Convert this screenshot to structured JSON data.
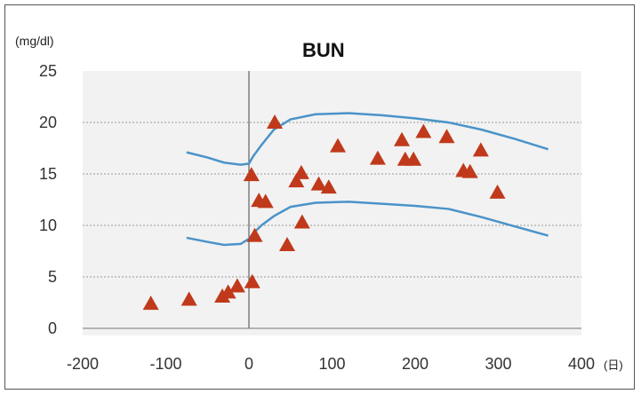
{
  "chart_data": {
    "type": "scatter",
    "title": "BUN",
    "ylabel": "(mg/dl)",
    "xlabel": "(日)",
    "xlim": [
      -200,
      400
    ],
    "ylim": [
      0,
      25
    ],
    "x_ticks": [
      -200,
      -100,
      0,
      100,
      200,
      300,
      400
    ],
    "y_ticks": [
      0,
      5,
      10,
      15,
      20,
      25
    ],
    "grid": "horizontal dotted",
    "colors": {
      "points": "#c0391b",
      "bands": "#4a93c9",
      "plot_bg": "#f2f2f2"
    },
    "points": [
      {
        "x": -118,
        "y": 2.4
      },
      {
        "x": -72,
        "y": 2.8
      },
      {
        "x": -32,
        "y": 3.1
      },
      {
        "x": -25,
        "y": 3.5
      },
      {
        "x": -14,
        "y": 4.1
      },
      {
        "x": 4,
        "y": 4.5
      },
      {
        "x": 7,
        "y": 9.0
      },
      {
        "x": 3,
        "y": 14.9
      },
      {
        "x": 12,
        "y": 12.4
      },
      {
        "x": 20,
        "y": 12.3
      },
      {
        "x": 31,
        "y": 20.0
      },
      {
        "x": 46,
        "y": 8.1
      },
      {
        "x": 57,
        "y": 14.3
      },
      {
        "x": 63,
        "y": 15.1
      },
      {
        "x": 64,
        "y": 10.3
      },
      {
        "x": 84,
        "y": 14.0
      },
      {
        "x": 96,
        "y": 13.7
      },
      {
        "x": 107,
        "y": 17.7
      },
      {
        "x": 155,
        "y": 16.5
      },
      {
        "x": 184,
        "y": 18.3
      },
      {
        "x": 188,
        "y": 16.4
      },
      {
        "x": 198,
        "y": 16.4
      },
      {
        "x": 210,
        "y": 19.1
      },
      {
        "x": 238,
        "y": 18.6
      },
      {
        "x": 258,
        "y": 15.3
      },
      {
        "x": 266,
        "y": 15.2
      },
      {
        "x": 279,
        "y": 17.3
      },
      {
        "x": 299,
        "y": 13.2
      }
    ],
    "upper_band": [
      {
        "x": -75,
        "y": 17.1
      },
      {
        "x": -50,
        "y": 16.6
      },
      {
        "x": -30,
        "y": 16.1
      },
      {
        "x": -10,
        "y": 15.9
      },
      {
        "x": 0,
        "y": 16.0
      },
      {
        "x": 5,
        "y": 16.7
      },
      {
        "x": 15,
        "y": 17.8
      },
      {
        "x": 30,
        "y": 19.3
      },
      {
        "x": 50,
        "y": 20.3
      },
      {
        "x": 80,
        "y": 20.8
      },
      {
        "x": 120,
        "y": 20.9
      },
      {
        "x": 160,
        "y": 20.7
      },
      {
        "x": 200,
        "y": 20.4
      },
      {
        "x": 240,
        "y": 20.0
      },
      {
        "x": 280,
        "y": 19.3
      },
      {
        "x": 320,
        "y": 18.4
      },
      {
        "x": 360,
        "y": 17.4
      }
    ],
    "lower_band": [
      {
        "x": -75,
        "y": 8.8
      },
      {
        "x": -50,
        "y": 8.4
      },
      {
        "x": -30,
        "y": 8.1
      },
      {
        "x": -10,
        "y": 8.2
      },
      {
        "x": 0,
        "y": 8.7
      },
      {
        "x": 5,
        "y": 9.2
      },
      {
        "x": 15,
        "y": 10.0
      },
      {
        "x": 30,
        "y": 10.9
      },
      {
        "x": 50,
        "y": 11.8
      },
      {
        "x": 80,
        "y": 12.2
      },
      {
        "x": 120,
        "y": 12.3
      },
      {
        "x": 160,
        "y": 12.1
      },
      {
        "x": 200,
        "y": 11.9
      },
      {
        "x": 240,
        "y": 11.6
      },
      {
        "x": 280,
        "y": 10.8
      },
      {
        "x": 320,
        "y": 9.9
      },
      {
        "x": 360,
        "y": 9.0
      }
    ]
  }
}
